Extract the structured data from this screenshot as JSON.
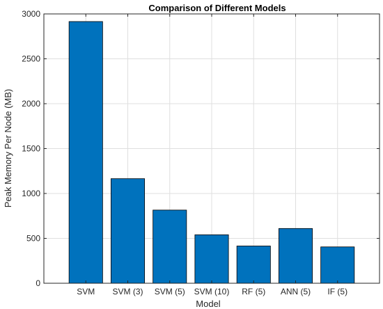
{
  "chart_data": {
    "type": "bar",
    "title": "Comparison of Different Models",
    "xlabel": "Model",
    "ylabel": "Peak Memory Per Node (MB)",
    "categories": [
      "SVM",
      "SVM (3)",
      "SVM (5)",
      "SVM (10)",
      "RF (5)",
      "ANN (5)",
      "IF (5)"
    ],
    "values": [
      2915,
      1165,
      815,
      540,
      415,
      610,
      405
    ],
    "ylim": [
      0,
      3000
    ],
    "yticks": [
      0,
      500,
      1000,
      1500,
      2000,
      2500,
      3000
    ],
    "grid": true,
    "legend": "none",
    "bar_color": "#0072BD"
  }
}
